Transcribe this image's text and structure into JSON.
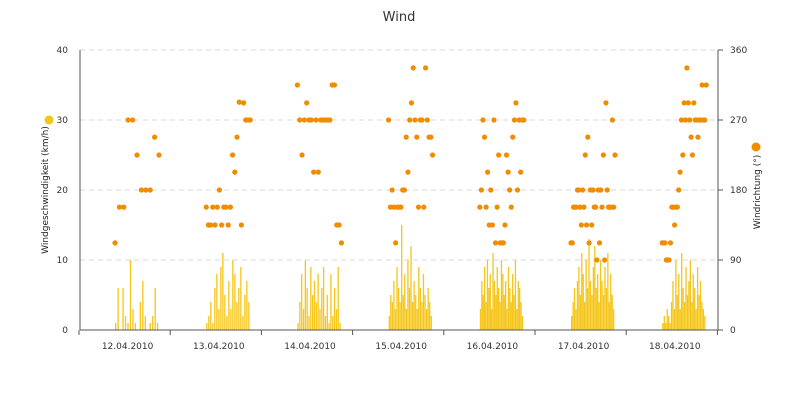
{
  "chart_data": {
    "type": "bar+scatter",
    "title": "Wind",
    "x_categories": [
      "12.04.2010",
      "13.04.2010",
      "14.04.2010",
      "15.04.2010",
      "16.04.2010",
      "17.04.2010",
      "18.04.2010"
    ],
    "y_left": {
      "label": "Windgeschwindigkeit (km/h)",
      "min": 0,
      "max": 40,
      "ticks": [
        "0",
        "10",
        "20",
        "30",
        "40"
      ]
    },
    "y_right": {
      "label": "Windrichtung (°)",
      "min": 0,
      "max": 360,
      "ticks": [
        "0",
        "90",
        "180",
        "270",
        "360"
      ]
    },
    "grid": true,
    "series": [
      {
        "name": "Windgeschwindigkeit (km/h)",
        "kind": "bar",
        "axis": "left",
        "color": "#f5c518",
        "days": [
          [
            1,
            6,
            0,
            6,
            2,
            1,
            10,
            3,
            1,
            0,
            4,
            7,
            2,
            0,
            1,
            2,
            6,
            1
          ],
          [
            1,
            2,
            4,
            1,
            6,
            8,
            3,
            9,
            11,
            5,
            2,
            7,
            3,
            10,
            8,
            4,
            6,
            9,
            2,
            5,
            7,
            4
          ],
          [
            1,
            4,
            8,
            3,
            10,
            6,
            2,
            9,
            5,
            7,
            4,
            8,
            3,
            6,
            9,
            2,
            5,
            1,
            8,
            2,
            6,
            3,
            9,
            1
          ],
          [
            2,
            5,
            4,
            7,
            3,
            9,
            6,
            4,
            15,
            5,
            8,
            3,
            10,
            6,
            12,
            4,
            7,
            5,
            3,
            9,
            6,
            4,
            8,
            5,
            3,
            6,
            4,
            2
          ],
          [
            3,
            7,
            5,
            9,
            4,
            10,
            6,
            8,
            3,
            11,
            7,
            5,
            9,
            6,
            4,
            10,
            8,
            5,
            7,
            3,
            9,
            6,
            4,
            8,
            5,
            10,
            3,
            7,
            6,
            4,
            2
          ],
          [
            2,
            4,
            6,
            3,
            7,
            9,
            5,
            11,
            8,
            4,
            10,
            6,
            13,
            7,
            5,
            9,
            12,
            6,
            8,
            4,
            10,
            7,
            5,
            9,
            6,
            11,
            4,
            8,
            5,
            3
          ],
          [
            1,
            2,
            1,
            3,
            2,
            1,
            4,
            7,
            3,
            10,
            5,
            8,
            3,
            11,
            6,
            4,
            9,
            5,
            7,
            10,
            4,
            8,
            6,
            3,
            9,
            5,
            7,
            4,
            3,
            2
          ]
        ]
      },
      {
        "name": "Windrichtung (°)",
        "kind": "scatter",
        "axis": "right",
        "color": "#f08c00",
        "days": [
          [
            112,
            158,
            158,
            270,
            270,
            225,
            180,
            180,
            180,
            248,
            225
          ],
          [
            158,
            135,
            135,
            158,
            135,
            158,
            180,
            135,
            158,
            158,
            135,
            158,
            225,
            203,
            248,
            293,
            135,
            292,
            270,
            270,
            270
          ],
          [
            315,
            270,
            225,
            270,
            292,
            270,
            270,
            203,
            270,
            203,
            270,
            270,
            270,
            270,
            270,
            315,
            315,
            135,
            135,
            112
          ],
          [
            270,
            158,
            180,
            158,
            112,
            158,
            158,
            158,
            180,
            180,
            248,
            203,
            270,
            292,
            337,
            270,
            248,
            158,
            270,
            270,
            158,
            337,
            270,
            248,
            248,
            225
          ],
          [
            158,
            180,
            270,
            248,
            158,
            203,
            135,
            180,
            135,
            270,
            112,
            158,
            225,
            112,
            112,
            112,
            135,
            225,
            203,
            180,
            158,
            248,
            270,
            292,
            180,
            270,
            203,
            270,
            270
          ],
          [
            112,
            112,
            158,
            158,
            158,
            180,
            180,
            158,
            135,
            180,
            158,
            225,
            135,
            248,
            112,
            180,
            135,
            180,
            158,
            158,
            90,
            180,
            112,
            180,
            158,
            225,
            90,
            292,
            180,
            158,
            158,
            158,
            270,
            158,
            225
          ],
          [
            112,
            112,
            112,
            90,
            90,
            90,
            112,
            158,
            158,
            135,
            158,
            158,
            180,
            203,
            270,
            225,
            292,
            270,
            337,
            292,
            270,
            248,
            225,
            292,
            270,
            270,
            248,
            270,
            270,
            315,
            270,
            270,
            315
          ]
        ]
      }
    ]
  },
  "legend": {
    "left_marker_color": "#f5c518",
    "right_marker_color": "#f08c00"
  }
}
